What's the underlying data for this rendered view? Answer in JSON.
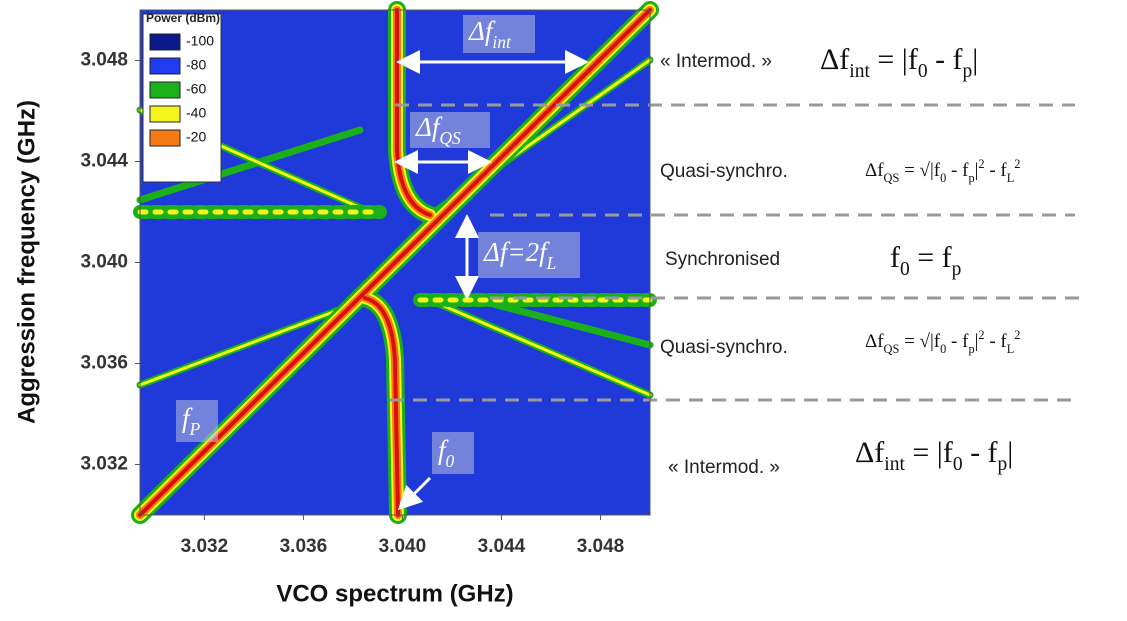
{
  "chart_data": {
    "type": "heatmap",
    "xlabel": "VCO spectrum (GHz)",
    "ylabel": "Aggression frequency (GHz)",
    "xlim": [
      3.0294,
      3.05
    ],
    "xticks": [
      3.032,
      3.036,
      {
        "value": 3.04,
        "label": "3.040"
      },
      3.044,
      3.048
    ],
    "ylim": [
      3.03,
      3.05
    ],
    "yticks": [
      3.032,
      3.036,
      {
        "value": 3.04,
        "label": "3.040"
      },
      3.044,
      3.048
    ],
    "legend": {
      "title": "Power (dBm)",
      "levels": [
        {
          "value": -100,
          "color": "#0a1a8c"
        },
        {
          "value": -80,
          "color": "#1f3cf0"
        },
        {
          "value": -60,
          "color": "#19b019"
        },
        {
          "value": -40,
          "color": "#f5f51e"
        },
        {
          "value": -20,
          "color": "#f57a14"
        }
      ]
    },
    "annotations": [
      {
        "parts": [
          {
            "text": "Δf"
          },
          {
            "text": "int",
            "sub": true
          }
        ]
      },
      {
        "parts": [
          {
            "text": "Δf"
          },
          {
            "text": "QS",
            "sub": true
          }
        ]
      },
      {
        "parts": [
          {
            "text": "Δf=2f"
          },
          {
            "text": "L",
            "sub": true
          }
        ]
      },
      {
        "parts": [
          {
            "text": "f"
          },
          {
            "text": "P",
            "sub": true
          }
        ]
      },
      {
        "parts": [
          {
            "text": "f"
          },
          {
            "text": "0",
            "sub": true
          }
        ]
      }
    ]
  },
  "regimes": [
    {
      "label": "« Intermod. »",
      "formula": [
        {
          "text": "Δf"
        },
        {
          "text": "int",
          "sub": true
        },
        {
          "text": " = |f"
        },
        {
          "text": "0",
          "sub": true
        },
        {
          "text": " - f"
        },
        {
          "text": "p",
          "sub": true
        },
        {
          "text": "|"
        }
      ]
    },
    {
      "label": "Quasi-synchro.",
      "formula": [
        {
          "text": "Δf"
        },
        {
          "text": "QS",
          "sub": true
        },
        {
          "text": " = √|f"
        },
        {
          "text": "0",
          "sub": true
        },
        {
          "text": " - f"
        },
        {
          "text": "p",
          "sub": true
        },
        {
          "text": "|"
        },
        {
          "text": "2",
          "sup": true
        },
        {
          "text": " - f"
        },
        {
          "text": "L",
          "sub": true
        },
        {
          "text": "2",
          "sup": true
        }
      ]
    },
    {
      "label": "Synchronised",
      "formula": [
        {
          "text": "f"
        },
        {
          "text": "0",
          "sub": true
        },
        {
          "text": " = f"
        },
        {
          "text": "p",
          "sub": true
        }
      ]
    },
    {
      "label": "Quasi-synchro.",
      "formula": [
        {
          "text": "Δf"
        },
        {
          "text": "QS",
          "sub": true
        },
        {
          "text": " = √|f"
        },
        {
          "text": "0",
          "sub": true
        },
        {
          "text": " - f"
        },
        {
          "text": "p",
          "sub": true
        },
        {
          "text": "|"
        },
        {
          "text": "2",
          "sup": true
        },
        {
          "text": " - f"
        },
        {
          "text": "L",
          "sub": true
        },
        {
          "text": "2",
          "sup": true
        }
      ]
    },
    {
      "label": "« Intermod. »",
      "formula": [
        {
          "text": "Δf"
        },
        {
          "text": "int",
          "sub": true
        },
        {
          "text": " = |f"
        },
        {
          "text": "0",
          "sub": true
        },
        {
          "text": " - f"
        },
        {
          "text": "p",
          "sub": true
        },
        {
          "text": "|"
        }
      ]
    }
  ]
}
